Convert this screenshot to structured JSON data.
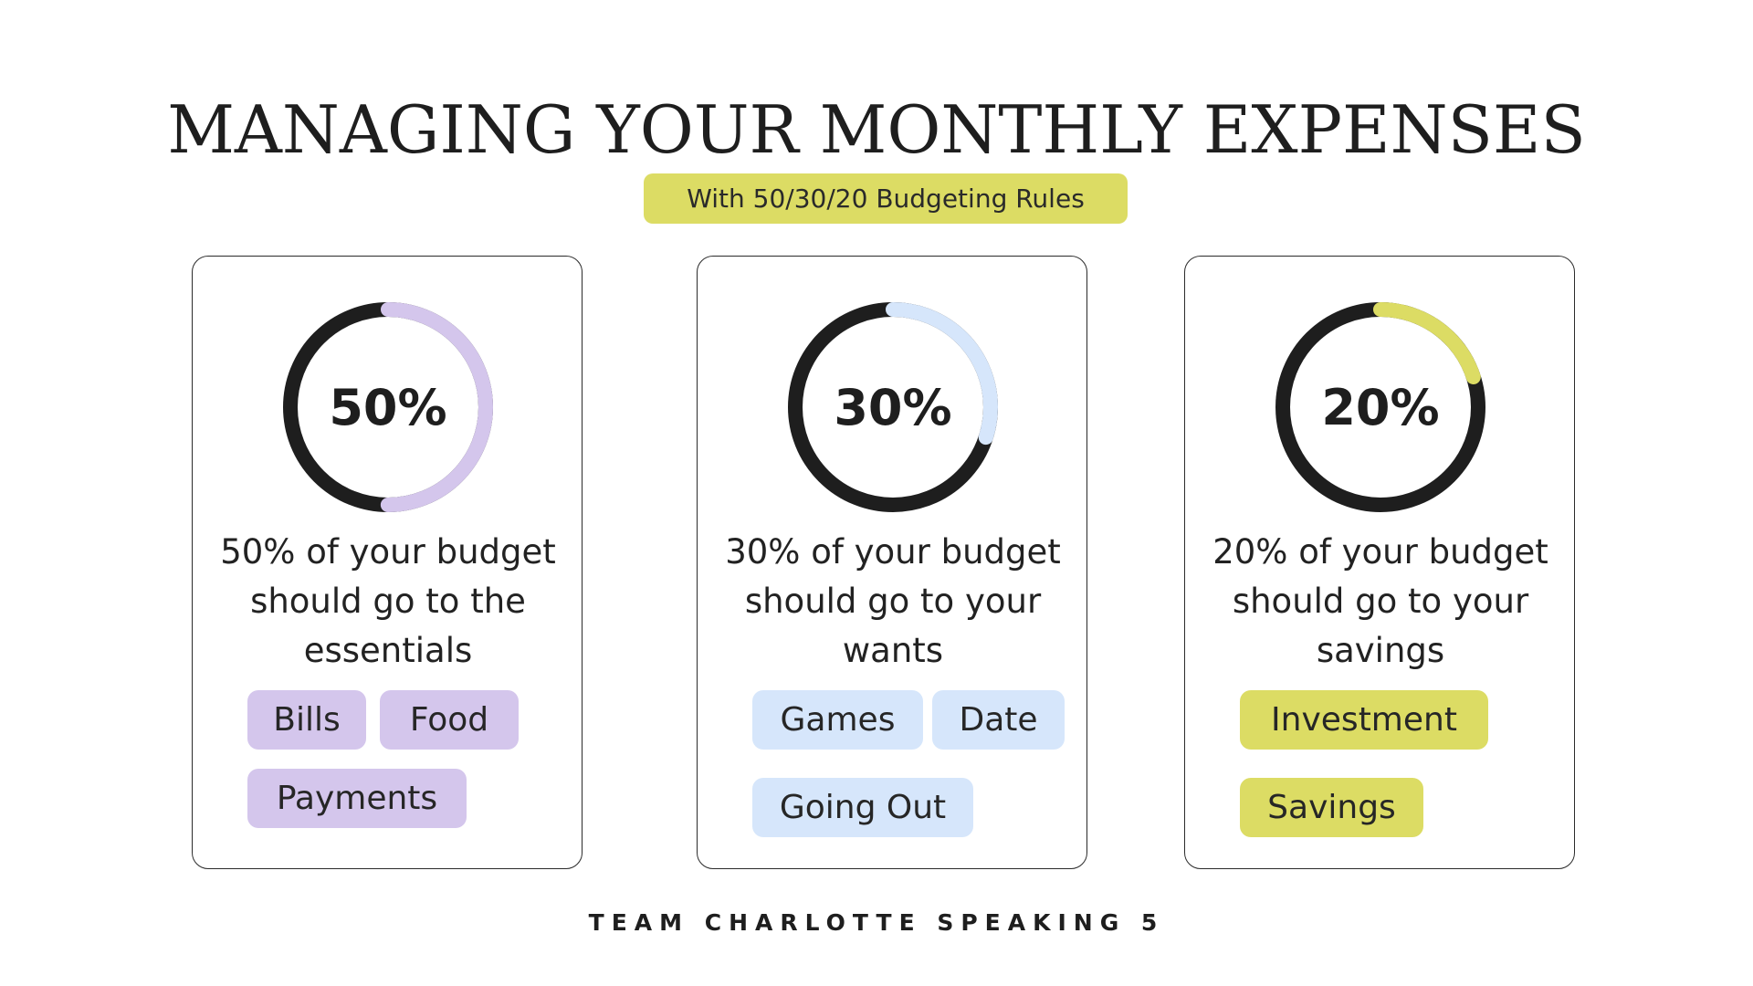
{
  "title": "MANAGING YOUR MONTHLY EXPENSES",
  "subtitle": "With 50/30/20 Budgeting Rules",
  "footer": "TEAM CHARLOTTE SPEAKING 5",
  "colors": {
    "ring_base": "#1e1e1e",
    "needs": "#d4c6ec",
    "wants": "#d6e6fb",
    "savings": "#dcdc64"
  },
  "chart_data": [
    {
      "type": "pie",
      "label": "50%",
      "value": 50,
      "description": "50% of your budget should go to the essentials",
      "tags": [
        "Bills",
        "Food",
        "Payments"
      ],
      "color": "#d4c6ec"
    },
    {
      "type": "pie",
      "label": "30%",
      "value": 30,
      "description": "30% of your budget should go to your wants",
      "tags": [
        "Games",
        "Date",
        "Going Out"
      ],
      "color": "#d6e6fb"
    },
    {
      "type": "pie",
      "label": "20%",
      "value": 20,
      "description": "20% of your budget should go to your savings",
      "tags": [
        "Investment",
        "Savings"
      ],
      "color": "#dcdc64"
    }
  ]
}
